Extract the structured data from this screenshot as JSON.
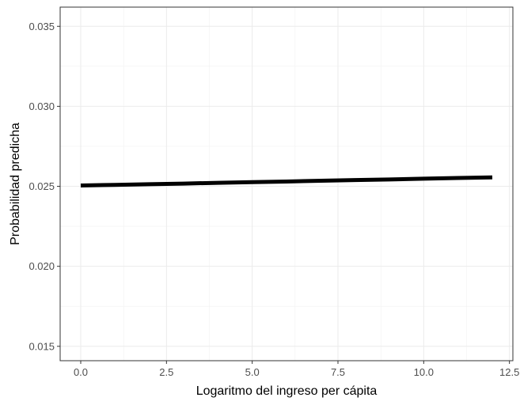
{
  "chart_data": {
    "type": "line",
    "title": "",
    "xlabel": "Logaritmo del ingreso per cápita",
    "ylabel": "Probabilidad predicha",
    "xlim": [
      -0.6,
      12.6
    ],
    "ylim": [
      0.0141,
      0.0362
    ],
    "x_ticks": [
      0.0,
      2.5,
      5.0,
      7.5,
      10.0,
      12.5
    ],
    "x_tick_labels": [
      "0.0",
      "2.5",
      "5.0",
      "7.5",
      "10.0",
      "12.5"
    ],
    "y_ticks": [
      0.015,
      0.02,
      0.025,
      0.03,
      0.035
    ],
    "y_tick_labels": [
      "0.015",
      "0.020",
      "0.025",
      "0.030",
      "0.035"
    ],
    "grid": true,
    "legend": "none",
    "series": [
      {
        "color": "#000000",
        "x": [
          0,
          1,
          2,
          3,
          4,
          5,
          6,
          7,
          8,
          9,
          10,
          11,
          12
        ],
        "y": [
          0.02505,
          0.02509,
          0.02513,
          0.02517,
          0.02522,
          0.02526,
          0.0253,
          0.02535,
          0.02539,
          0.02543,
          0.02548,
          0.02552,
          0.02556
        ]
      }
    ]
  }
}
